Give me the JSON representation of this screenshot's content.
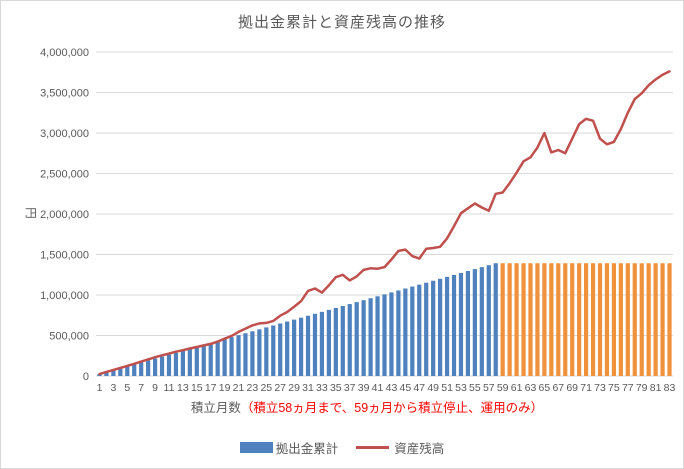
{
  "title": "拠出金累計と資産残高の推移",
  "colors": {
    "bar_contributing": "#4e81bd",
    "bar_stopped": "#f0913c",
    "line_assets": "#c0504d",
    "gridline": "#d9d9d9",
    "axis_text": "#595959",
    "note_red": "#ff0000",
    "border": "#d9d9d9",
    "background": "#ffffff"
  },
  "y_axis": {
    "title": "円",
    "min": 0,
    "max": 4000000,
    "step": 500000,
    "tick_labels": [
      "0",
      "500,000",
      "1,000,000",
      "1,500,000",
      "2,000,000",
      "2,500,000",
      "3,000,000",
      "3,500,000",
      "4,000,000"
    ]
  },
  "x_axis": {
    "title_black": "積立月数",
    "title_red": "（積立58ヵ月まで、59ヵ月から積立停止、運用のみ）",
    "tick_every": 2
  },
  "legend": {
    "bar_label": "拠出金累計",
    "line_label": "資産残高"
  },
  "chart_data": {
    "type": "combo",
    "x": [
      1,
      2,
      3,
      4,
      5,
      6,
      7,
      8,
      9,
      10,
      11,
      12,
      13,
      14,
      15,
      16,
      17,
      18,
      19,
      20,
      21,
      22,
      23,
      24,
      25,
      26,
      27,
      28,
      29,
      30,
      31,
      32,
      33,
      34,
      35,
      36,
      37,
      38,
      39,
      40,
      41,
      42,
      43,
      44,
      45,
      46,
      47,
      48,
      49,
      50,
      51,
      52,
      53,
      54,
      55,
      56,
      57,
      58,
      59,
      60,
      61,
      62,
      63,
      64,
      65,
      66,
      67,
      68,
      69,
      70,
      71,
      72,
      73,
      74,
      75,
      76,
      77,
      78,
      79,
      80,
      81,
      82,
      83
    ],
    "xlabel": "積立月数（積立58ヵ月まで、59ヵ月から積立停止、運用のみ）",
    "ylabel": "円",
    "ylim": [
      0,
      4000000
    ],
    "grid": true,
    "legend_position": "bottom",
    "series": [
      {
        "name": "拠出金累計",
        "type": "bar",
        "phase_split_month": 59,
        "color_contributing": "#4e81bd",
        "color_stopped": "#f0913c",
        "values": [
          24000,
          48000,
          72000,
          96000,
          120000,
          144000,
          168000,
          192000,
          216000,
          240000,
          264000,
          288000,
          312000,
          336000,
          360000,
          384000,
          408000,
          432000,
          456000,
          480000,
          504000,
          528000,
          552000,
          576000,
          600000,
          624000,
          648000,
          672000,
          696000,
          720000,
          744000,
          768000,
          792000,
          816000,
          840000,
          864000,
          888000,
          912000,
          936000,
          960000,
          984000,
          1008000,
          1032000,
          1056000,
          1080000,
          1104000,
          1128000,
          1152000,
          1176000,
          1200000,
          1224000,
          1248000,
          1272000,
          1296000,
          1320000,
          1344000,
          1368000,
          1392000,
          1392000,
          1392000,
          1392000,
          1392000,
          1392000,
          1392000,
          1392000,
          1392000,
          1392000,
          1392000,
          1392000,
          1392000,
          1392000,
          1392000,
          1392000,
          1392000,
          1392000,
          1392000,
          1392000,
          1392000,
          1392000,
          1392000,
          1392000,
          1392000,
          1392000
        ]
      },
      {
        "name": "資産残高",
        "type": "line",
        "color": "#c0504d",
        "values": [
          24000,
          50000,
          75000,
          100000,
          125000,
          151000,
          178000,
          205000,
          232000,
          256000,
          276000,
          300000,
          318000,
          340000,
          358000,
          378000,
          396000,
          425000,
          460000,
          495000,
          545000,
          585000,
          625000,
          650000,
          655000,
          680000,
          745000,
          790000,
          855000,
          925000,
          1050000,
          1080000,
          1030000,
          1120000,
          1220000,
          1250000,
          1180000,
          1230000,
          1310000,
          1330000,
          1325000,
          1345000,
          1440000,
          1545000,
          1560000,
          1480000,
          1450000,
          1570000,
          1580000,
          1595000,
          1700000,
          1850000,
          2010000,
          2070000,
          2130000,
          2080000,
          2040000,
          2250000,
          2265000,
          2380000,
          2510000,
          2650000,
          2700000,
          2820000,
          3000000,
          2760000,
          2790000,
          2750000,
          2930000,
          3110000,
          3175000,
          3150000,
          2930000,
          2860000,
          2890000,
          3050000,
          3250000,
          3420000,
          3490000,
          3590000,
          3660000,
          3720000,
          3760000
        ]
      }
    ]
  }
}
